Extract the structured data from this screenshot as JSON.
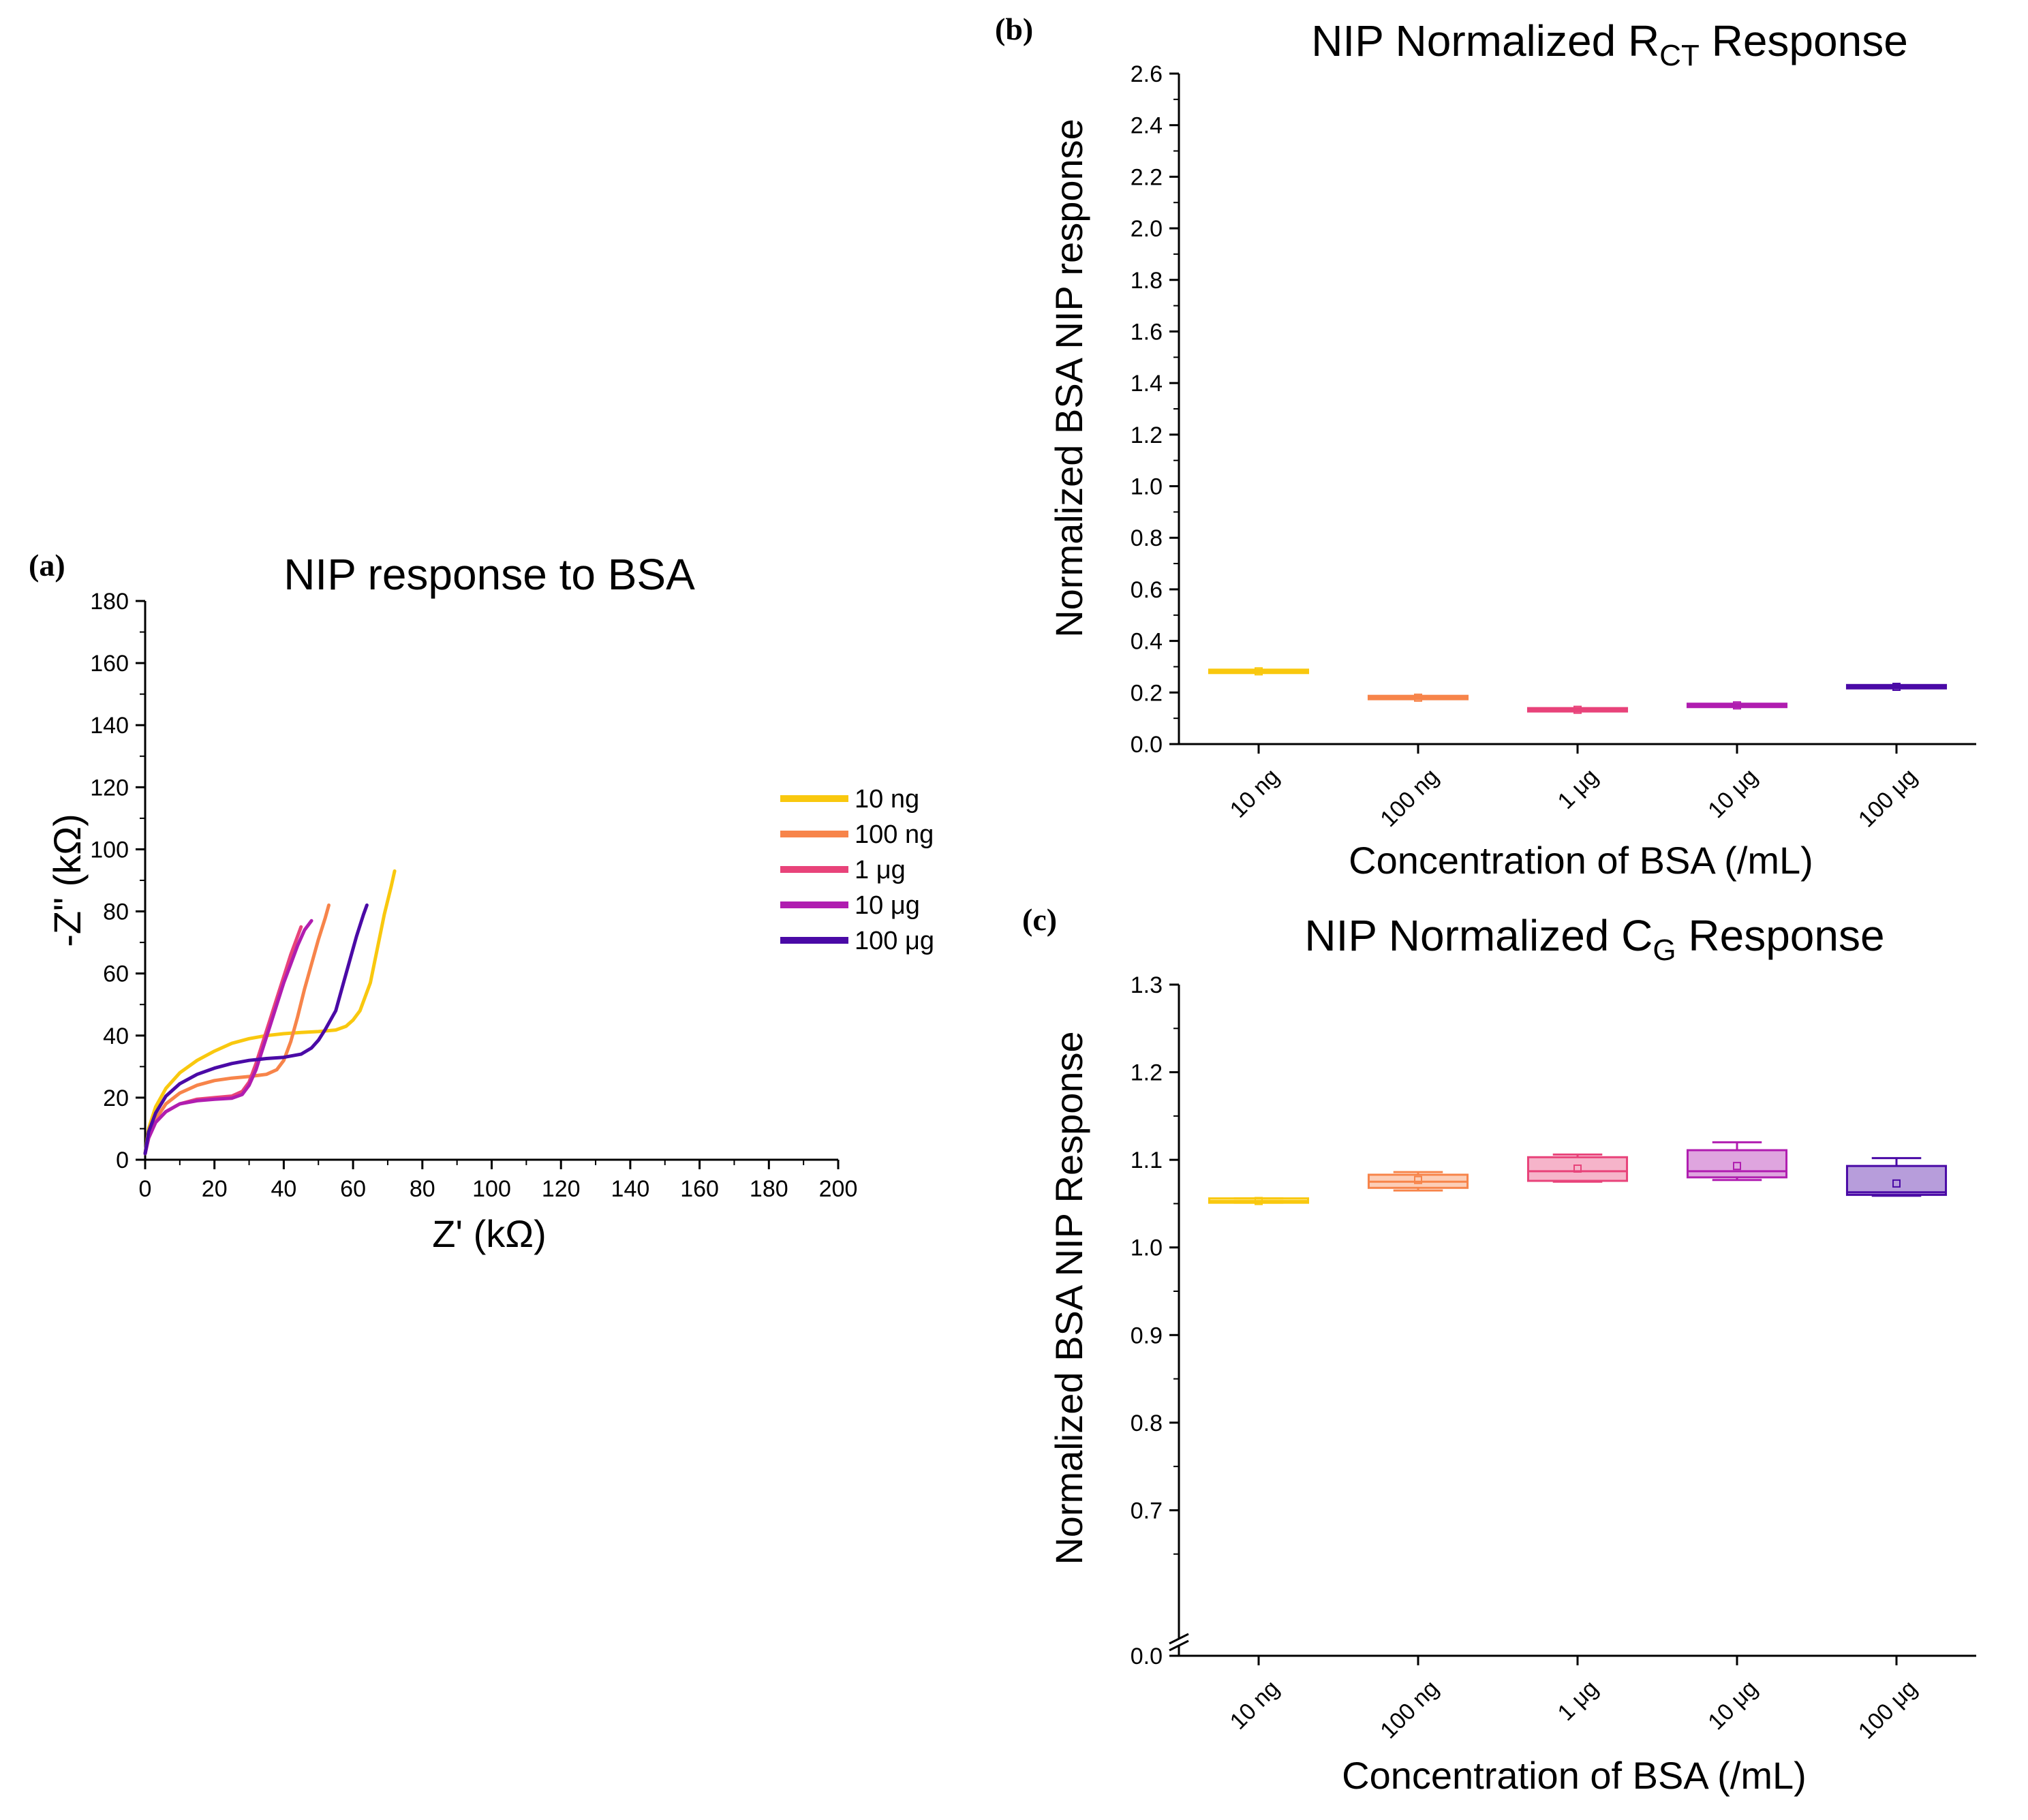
{
  "chart_data": [
    {
      "id": "a",
      "panel_label": "(a)",
      "type": "line",
      "title": "NIP response to BSA",
      "xlabel": "Z' (kΩ)",
      "ylabel": "-Z\" (kΩ)",
      "xlim": [
        0,
        200
      ],
      "ylim": [
        0,
        180
      ],
      "xticks": [
        "0",
        "20",
        "40",
        "60",
        "80",
        "100",
        "120",
        "140",
        "160",
        "180",
        "200"
      ],
      "yticks": [
        "0",
        "20",
        "40",
        "60",
        "80",
        "100",
        "120",
        "140",
        "160",
        "180"
      ],
      "legend_position": "right",
      "series": [
        {
          "name": "10 ng",
          "color": "#f9c80e",
          "points": [
            [
              0,
              2
            ],
            [
              1,
              10
            ],
            [
              3,
              17
            ],
            [
              6,
              23
            ],
            [
              10,
              28
            ],
            [
              15,
              32
            ],
            [
              20,
              35
            ],
            [
              25,
              37.5
            ],
            [
              30,
              39
            ],
            [
              35,
              40
            ],
            [
              40,
              40.6
            ],
            [
              45,
              41
            ],
            [
              50,
              41.3
            ],
            [
              55,
              41.8
            ],
            [
              58,
              43
            ],
            [
              60,
              45
            ],
            [
              62,
              48
            ],
            [
              65,
              57
            ],
            [
              67,
              68
            ],
            [
              69,
              79
            ],
            [
              71,
              88
            ],
            [
              72,
              93
            ]
          ]
        },
        {
          "name": "100 ng",
          "color": "#f7844a",
          "points": [
            [
              0,
              2
            ],
            [
              1,
              8
            ],
            [
              3,
              13
            ],
            [
              6,
              18
            ],
            [
              10,
              21.5
            ],
            [
              15,
              24
            ],
            [
              20,
              25.5
            ],
            [
              25,
              26.3
            ],
            [
              30,
              26.8
            ],
            [
              35,
              27.5
            ],
            [
              38,
              29
            ],
            [
              40,
              32
            ],
            [
              42,
              38
            ],
            [
              44,
              46
            ],
            [
              46,
              55
            ],
            [
              48,
              63
            ],
            [
              50,
              71
            ],
            [
              52,
              78
            ],
            [
              53,
              82
            ]
          ]
        },
        {
          "name": "1 μg",
          "color": "#e8437a",
          "points": [
            [
              0,
              2
            ],
            [
              1,
              7
            ],
            [
              3,
              12
            ],
            [
              6,
              15.5
            ],
            [
              10,
              18
            ],
            [
              15,
              19.5
            ],
            [
              20,
              20
            ],
            [
              25,
              20.5
            ],
            [
              28,
              22
            ],
            [
              30,
              25
            ],
            [
              32,
              31
            ],
            [
              34,
              38
            ],
            [
              36,
              45
            ],
            [
              38,
              52
            ],
            [
              40,
              59
            ],
            [
              42,
              66
            ],
            [
              44,
              72
            ],
            [
              45,
              75
            ]
          ]
        },
        {
          "name": "10 μg",
          "color": "#b01db0",
          "points": [
            [
              0,
              2
            ],
            [
              1,
              7
            ],
            [
              3,
              12
            ],
            [
              6,
              15.5
            ],
            [
              10,
              18
            ],
            [
              15,
              19
            ],
            [
              20,
              19.5
            ],
            [
              25,
              19.8
            ],
            [
              28,
              21
            ],
            [
              30,
              24
            ],
            [
              32,
              29
            ],
            [
              34,
              36
            ],
            [
              36,
              43
            ],
            [
              38,
              50
            ],
            [
              40,
              57
            ],
            [
              42,
              63
            ],
            [
              44,
              69
            ],
            [
              46,
              74
            ],
            [
              48,
              77
            ]
          ]
        },
        {
          "name": "100 μg",
          "color": "#4a0aa6",
          "points": [
            [
              0,
              2
            ],
            [
              1,
              9
            ],
            [
              3,
              15
            ],
            [
              6,
              20.5
            ],
            [
              10,
              24.5
            ],
            [
              15,
              27.5
            ],
            [
              20,
              29.5
            ],
            [
              25,
              31
            ],
            [
              30,
              32
            ],
            [
              35,
              32.6
            ],
            [
              40,
              33
            ],
            [
              45,
              34
            ],
            [
              48,
              36
            ],
            [
              50,
              38.5
            ],
            [
              52,
              42
            ],
            [
              55,
              48
            ],
            [
              57,
              56
            ],
            [
              59,
              64
            ],
            [
              61,
              72
            ],
            [
              63,
              79
            ],
            [
              64,
              82
            ]
          ]
        }
      ]
    },
    {
      "id": "b",
      "panel_label": "(b)",
      "type": "box",
      "title_main": "NIP Normalized R",
      "title_sub": "CT",
      "title_tail": " Response",
      "xlabel": "Concentration of BSA (/mL)",
      "ylabel": "Normalized BSA NIP response",
      "ylim": [
        0,
        2.6
      ],
      "yticks": [
        "0.0",
        "0.2",
        "0.4",
        "0.6",
        "0.8",
        "1.0",
        "1.2",
        "1.4",
        "1.6",
        "1.8",
        "2.0",
        "2.2",
        "2.4",
        "2.6"
      ],
      "categories": [
        "10 ng",
        "100 ng",
        "1 μg",
        "10 μg",
        "100 μg"
      ],
      "colors": [
        "#f9c80e",
        "#f7844a",
        "#e8437a",
        "#b01db0",
        "#4a0aa6"
      ],
      "boxes": [
        {
          "min": 0.282,
          "q1": 0.282,
          "median": 0.282,
          "q3": 0.282,
          "max": 0.282,
          "mean": 0.282
        },
        {
          "min": 0.178,
          "q1": 0.178,
          "median": 0.18,
          "q3": 0.183,
          "max": 0.183,
          "mean": 0.18
        },
        {
          "min": 0.132,
          "q1": 0.132,
          "median": 0.133,
          "q3": 0.134,
          "max": 0.134,
          "mean": 0.133
        },
        {
          "min": 0.148,
          "q1": 0.148,
          "median": 0.15,
          "q3": 0.152,
          "max": 0.152,
          "mean": 0.15
        },
        {
          "min": 0.22,
          "q1": 0.22,
          "median": 0.222,
          "q3": 0.225,
          "max": 0.225,
          "mean": 0.222
        }
      ]
    },
    {
      "id": "c",
      "panel_label": "(c)",
      "type": "box",
      "title_main": "NIP Normalized C",
      "title_sub": "G",
      "title_tail": " Response",
      "xlabel": "Concentration of BSA (/mL)",
      "ylabel": "Normalized BSA NIP Response",
      "ylim": [
        0.6,
        1.3
      ],
      "axis_break_value": 0.0,
      "yticks": [
        "0.7",
        "0.8",
        "0.9",
        "1.0",
        "1.1",
        "1.2",
        "1.3"
      ],
      "ytick_break_label": "0.0",
      "categories": [
        "10 ng",
        "100 ng",
        "1 μg",
        "10 μg",
        "100 μg"
      ],
      "colors": [
        "#f9c80e",
        "#f7844a",
        "#e8437a",
        "#b01db0",
        "#4a0aa6"
      ],
      "boxes": [
        {
          "min": 1.051,
          "q1": 1.051,
          "median": 1.053,
          "q3": 1.056,
          "max": 1.056,
          "mean": 1.053
        },
        {
          "min": 1.065,
          "q1": 1.068,
          "median": 1.075,
          "q3": 1.083,
          "max": 1.086,
          "mean": 1.077
        },
        {
          "min": 1.075,
          "q1": 1.076,
          "median": 1.087,
          "q3": 1.103,
          "max": 1.106,
          "mean": 1.09
        },
        {
          "min": 1.077,
          "q1": 1.08,
          "median": 1.087,
          "q3": 1.111,
          "max": 1.12,
          "mean": 1.093
        },
        {
          "min": 1.059,
          "q1": 1.06,
          "median": 1.063,
          "q3": 1.093,
          "max": 1.102,
          "mean": 1.073
        }
      ]
    }
  ]
}
